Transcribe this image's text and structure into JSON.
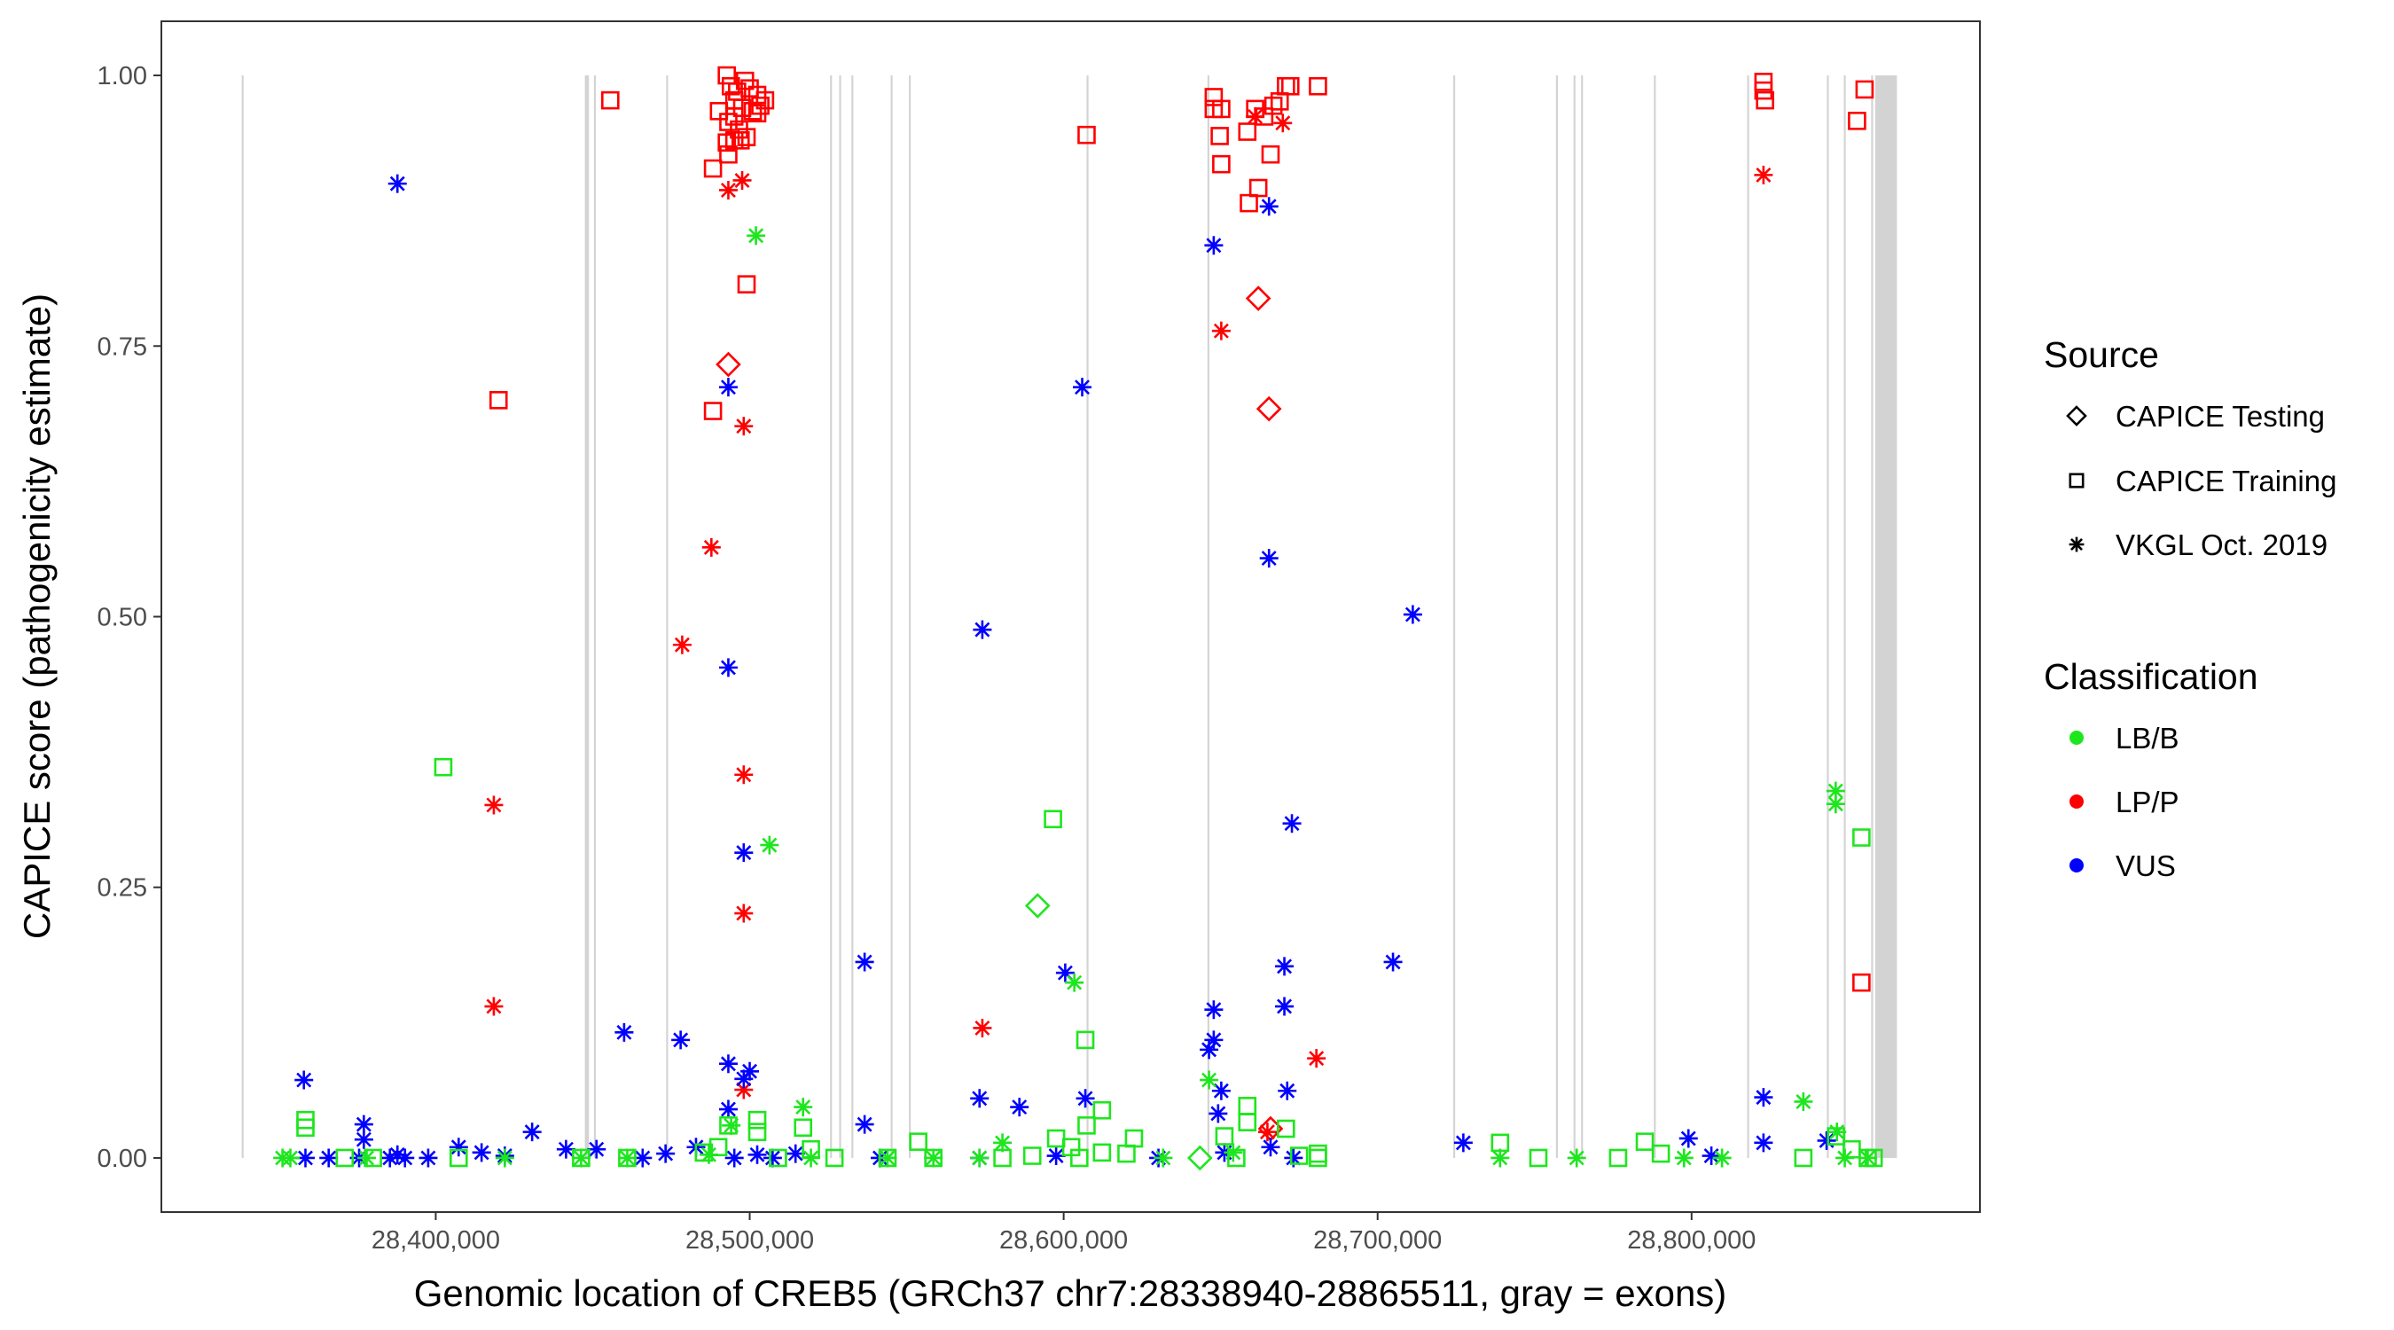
{
  "chart_data": {
    "type": "scatter",
    "title": "",
    "xlabel": "Genomic location of CREB5 (GRCh37 chr7:28338940-28865511, gray = exons)",
    "ylabel": "CAPICE score (pathogenicity estimate)",
    "xlim": [
      28312611,
      28891840
    ],
    "ylim": [
      -0.05,
      1.05
    ],
    "x_ticks": [
      28400000,
      28500000,
      28600000,
      28700000,
      28800000
    ],
    "x_tick_labels": [
      "28,400,000",
      "28,500,000",
      "28,600,000",
      "28,700,000",
      "28,800,000"
    ],
    "y_ticks": [
      0,
      0.25,
      0.5,
      0.75,
      1.0
    ],
    "y_tick_labels": [
      "0.00",
      "0.25",
      "0.50",
      "0.75",
      "1.00"
    ],
    "grid": false,
    "legend_placement": "right",
    "exons_color": "#c8c8c8",
    "exons": [
      [
        28338200,
        28338800
      ],
      [
        28447500,
        28448800
      ],
      [
        28450400,
        28451000
      ],
      [
        28473400,
        28474000
      ],
      [
        28525600,
        28526200
      ],
      [
        28528500,
        28529100
      ],
      [
        28532400,
        28533000
      ],
      [
        28544900,
        28545500
      ],
      [
        28550700,
        28551300
      ],
      [
        28607300,
        28607900
      ],
      [
        28645800,
        28646400
      ],
      [
        28724100,
        28724700
      ],
      [
        28756800,
        28757400
      ],
      [
        28762400,
        28763000
      ],
      [
        28764800,
        28765400
      ],
      [
        28788000,
        28788600
      ],
      [
        28817700,
        28818300
      ],
      [
        28843100,
        28843700
      ],
      [
        28848500,
        28849100
      ],
      [
        28857200,
        28857800
      ],
      [
        28858500,
        28865400
      ]
    ],
    "legend": {
      "source_title": "Source",
      "sources": [
        {
          "label": "CAPICE Testing",
          "shape": "diamond"
        },
        {
          "label": "CAPICE Training",
          "shape": "square"
        },
        {
          "label": "VKGL Oct. 2019",
          "shape": "asterisk"
        }
      ],
      "class_title": "Classification",
      "classes": [
        {
          "label": "LB/B",
          "color": "#1ee61e"
        },
        {
          "label": "LP/P",
          "color": "#ff0000"
        },
        {
          "label": "VUS",
          "color": "#0000ff"
        }
      ]
    },
    "point_fields": [
      "position",
      "score",
      "source_index",
      "class_index"
    ],
    "points": [
      [
        28455600,
        0.977,
        1,
        1
      ],
      [
        28420000,
        0.7,
        1,
        1
      ],
      [
        28492700,
        1.0,
        1,
        1
      ],
      [
        28494000,
        0.99,
        1,
        1
      ],
      [
        28496000,
        0.985,
        1,
        1
      ],
      [
        28498500,
        0.995,
        1,
        1
      ],
      [
        28500000,
        0.988,
        1,
        1
      ],
      [
        28502400,
        0.982,
        1,
        1
      ],
      [
        28495100,
        0.977,
        1,
        1
      ],
      [
        28497600,
        0.97,
        1,
        1
      ],
      [
        28501000,
        0.967,
        1,
        1
      ],
      [
        28503400,
        0.972,
        1,
        1
      ],
      [
        28490200,
        0.967,
        1,
        1
      ],
      [
        28493200,
        0.957,
        1,
        1
      ],
      [
        28496600,
        0.95,
        1,
        1
      ],
      [
        28499000,
        0.943,
        1,
        1
      ],
      [
        28495100,
        0.94,
        1,
        1
      ],
      [
        28492700,
        0.938,
        1,
        1
      ],
      [
        28488300,
        0.914,
        1,
        1
      ],
      [
        28493200,
        0.927,
        1,
        1
      ],
      [
        28497100,
        0.94,
        1,
        1
      ],
      [
        28499000,
        0.807,
        1,
        1
      ],
      [
        28488300,
        0.69,
        1,
        1
      ],
      [
        28495100,
        0.962,
        1,
        1
      ],
      [
        28502400,
        0.965,
        1,
        1
      ],
      [
        28504900,
        0.977,
        1,
        1
      ],
      [
        28607300,
        0.945,
        1,
        1
      ],
      [
        28647800,
        0.98,
        1,
        1
      ],
      [
        28647800,
        0.969,
        1,
        1
      ],
      [
        28650200,
        0.969,
        1,
        1
      ],
      [
        28649700,
        0.944,
        1,
        1
      ],
      [
        28650200,
        0.918,
        1,
        1
      ],
      [
        28658500,
        0.948,
        1,
        1
      ],
      [
        28661000,
        0.969,
        1,
        1
      ],
      [
        28663900,
        0.962,
        1,
        1
      ],
      [
        28666800,
        0.972,
        1,
        1
      ],
      [
        28668800,
        0.976,
        1,
        1
      ],
      [
        28670800,
        0.99,
        1,
        1
      ],
      [
        28672200,
        0.99,
        1,
        1
      ],
      [
        28681000,
        0.99,
        1,
        1
      ],
      [
        28662000,
        0.896,
        1,
        1
      ],
      [
        28659000,
        0.882,
        1,
        1
      ],
      [
        28665900,
        0.927,
        1,
        1
      ],
      [
        28822900,
        0.994,
        1,
        1
      ],
      [
        28822900,
        0.986,
        1,
        1
      ],
      [
        28823400,
        0.977,
        1,
        1
      ],
      [
        28855100,
        0.987,
        1,
        1
      ],
      [
        28852700,
        0.958,
        1,
        1
      ],
      [
        28854100,
        0.162,
        1,
        1
      ],
      [
        28493200,
        0.733,
        0,
        1
      ],
      [
        28662000,
        0.794,
        0,
        1
      ],
      [
        28665400,
        0.692,
        0,
        1
      ],
      [
        28665900,
        0.027,
        0,
        1
      ],
      [
        28493200,
        0.894,
        2,
        1
      ],
      [
        28497600,
        0.903,
        2,
        1
      ],
      [
        28498100,
        0.676,
        2,
        1
      ],
      [
        28487800,
        0.564,
        2,
        1
      ],
      [
        28478500,
        0.474,
        2,
        1
      ],
      [
        28498100,
        0.354,
        2,
        1
      ],
      [
        28498100,
        0.226,
        2,
        1
      ],
      [
        28418500,
        0.326,
        2,
        1
      ],
      [
        28418500,
        0.14,
        2,
        1
      ],
      [
        28498100,
        0.063,
        2,
        1
      ],
      [
        28574100,
        0.12,
        2,
        1
      ],
      [
        28650200,
        0.764,
        2,
        1
      ],
      [
        28661000,
        0.962,
        2,
        1
      ],
      [
        28669800,
        0.956,
        2,
        1
      ],
      [
        28680500,
        0.092,
        2,
        1
      ],
      [
        28822900,
        0.908,
        2,
        1
      ],
      [
        28664900,
        0.024,
        2,
        1
      ],
      [
        28387800,
        0.9,
        2,
        2
      ],
      [
        28493200,
        0.712,
        2,
        2
      ],
      [
        28493200,
        0.453,
        2,
        2
      ],
      [
        28498100,
        0.282,
        2,
        2
      ],
      [
        28574100,
        0.488,
        2,
        2
      ],
      [
        28536600,
        0.181,
        2,
        2
      ],
      [
        28605900,
        0.712,
        2,
        2
      ],
      [
        28647800,
        0.843,
        2,
        2
      ],
      [
        28665400,
        0.879,
        2,
        2
      ],
      [
        28665400,
        0.554,
        2,
        2
      ],
      [
        28711200,
        0.502,
        2,
        2
      ],
      [
        28672700,
        0.309,
        2,
        2
      ],
      [
        28670300,
        0.177,
        2,
        2
      ],
      [
        28670300,
        0.14,
        2,
        2
      ],
      [
        28704900,
        0.181,
        2,
        2
      ],
      [
        28600500,
        0.171,
        2,
        2
      ],
      [
        28647800,
        0.137,
        2,
        2
      ],
      [
        28647800,
        0.109,
        2,
        2
      ],
      [
        28646300,
        0.1,
        2,
        2
      ],
      [
        28650200,
        0.062,
        2,
        2
      ],
      [
        28649200,
        0.041,
        2,
        2
      ],
      [
        28671200,
        0.062,
        2,
        2
      ],
      [
        28358000,
        0.072,
        2,
        2
      ],
      [
        28460000,
        0.116,
        2,
        2
      ],
      [
        28478000,
        0.109,
        2,
        2
      ],
      [
        28493200,
        0.087,
        2,
        2
      ],
      [
        28500000,
        0.08,
        2,
        2
      ],
      [
        28498100,
        0.073,
        2,
        2
      ],
      [
        28493200,
        0.045,
        2,
        2
      ],
      [
        28536600,
        0.031,
        2,
        2
      ],
      [
        28573200,
        0.055,
        2,
        2
      ],
      [
        28585900,
        0.047,
        2,
        2
      ],
      [
        28606900,
        0.055,
        2,
        2
      ],
      [
        28430700,
        0.024,
        2,
        2
      ],
      [
        28377100,
        0.031,
        2,
        2
      ],
      [
        28377100,
        0.017,
        2,
        2
      ],
      [
        28727300,
        0.014,
        2,
        2
      ],
      [
        28799000,
        0.018,
        2,
        2
      ],
      [
        28822900,
        0.056,
        2,
        2
      ],
      [
        28822900,
        0.014,
        2,
        2
      ],
      [
        28843000,
        0.016,
        2,
        2
      ],
      [
        28358500,
        0,
        2,
        2
      ],
      [
        28365900,
        0,
        2,
        2
      ],
      [
        28375600,
        0,
        2,
        2
      ],
      [
        28385400,
        0,
        2,
        2
      ],
      [
        28387800,
        0.003,
        2,
        2
      ],
      [
        28390200,
        0,
        2,
        2
      ],
      [
        28397600,
        0,
        2,
        2
      ],
      [
        28407300,
        0.01,
        2,
        2
      ],
      [
        28414600,
        0.005,
        2,
        2
      ],
      [
        28422000,
        0.002,
        2,
        2
      ],
      [
        28441500,
        0.008,
        2,
        2
      ],
      [
        28451200,
        0.008,
        2,
        2
      ],
      [
        28465900,
        0,
        2,
        2
      ],
      [
        28473200,
        0.004,
        2,
        2
      ],
      [
        28482900,
        0.01,
        2,
        2
      ],
      [
        28495100,
        0,
        2,
        2
      ],
      [
        28502400,
        0.003,
        2,
        2
      ],
      [
        28507300,
        0,
        2,
        2
      ],
      [
        28514600,
        0.004,
        2,
        2
      ],
      [
        28541500,
        0,
        2,
        2
      ],
      [
        28573200,
        0,
        2,
        2
      ],
      [
        28597600,
        0.002,
        2,
        2
      ],
      [
        28630200,
        0,
        2,
        2
      ],
      [
        28651200,
        0.005,
        2,
        2
      ],
      [
        28665900,
        0.01,
        2,
        2
      ],
      [
        28673200,
        0,
        2,
        2
      ],
      [
        28806300,
        0.002,
        2,
        2
      ],
      [
        28402400,
        0.361,
        1,
        0
      ],
      [
        28358500,
        0.035,
        1,
        0
      ],
      [
        28358500,
        0.028,
        1,
        0
      ],
      [
        28596600,
        0.313,
        1,
        0
      ],
      [
        28606900,
        0.109,
        1,
        0
      ],
      [
        28502400,
        0.035,
        1,
        0
      ],
      [
        28502400,
        0.024,
        1,
        0
      ],
      [
        28517000,
        0.028,
        1,
        0
      ],
      [
        28493200,
        0.03,
        1,
        0
      ],
      [
        28553700,
        0.015,
        1,
        0
      ],
      [
        28854100,
        0.296,
        1,
        0
      ],
      [
        28846000,
        0.02,
        1,
        0
      ],
      [
        28835600,
        0,
        1,
        0
      ],
      [
        28785100,
        0.015,
        1,
        0
      ],
      [
        28739000,
        0.014,
        1,
        0
      ],
      [
        28751200,
        0,
        1,
        0
      ],
      [
        28776600,
        0,
        1,
        0
      ],
      [
        28790200,
        0.004,
        1,
        0
      ],
      [
        28681000,
        0,
        1,
        0
      ],
      [
        28622400,
        0.018,
        1,
        0
      ],
      [
        28612200,
        0.044,
        1,
        0
      ],
      [
        28607300,
        0.03,
        1,
        0
      ],
      [
        28658500,
        0.048,
        1,
        0
      ],
      [
        28658500,
        0.033,
        1,
        0
      ],
      [
        28670800,
        0.027,
        1,
        0
      ],
      [
        28651200,
        0.02,
        1,
        0
      ],
      [
        28602400,
        0.01,
        1,
        0
      ],
      [
        28597600,
        0.018,
        1,
        0
      ],
      [
        28612200,
        0.005,
        1,
        0
      ],
      [
        28371000,
        0,
        1,
        0
      ],
      [
        28380000,
        0,
        1,
        0
      ],
      [
        28407300,
        0,
        1,
        0
      ],
      [
        28446300,
        0,
        1,
        0
      ],
      [
        28461000,
        0,
        1,
        0
      ],
      [
        28485400,
        0.005,
        1,
        0
      ],
      [
        28490000,
        0.01,
        1,
        0
      ],
      [
        28509000,
        0,
        1,
        0
      ],
      [
        28519500,
        0.008,
        1,
        0
      ],
      [
        28527000,
        0,
        1,
        0
      ],
      [
        28543900,
        0,
        1,
        0
      ],
      [
        28558500,
        0,
        1,
        0
      ],
      [
        28580500,
        0,
        1,
        0
      ],
      [
        28590000,
        0.002,
        1,
        0
      ],
      [
        28605000,
        0,
        1,
        0
      ],
      [
        28620000,
        0.004,
        1,
        0
      ],
      [
        28655000,
        0,
        1,
        0
      ],
      [
        28675000,
        0.002,
        1,
        0
      ],
      [
        28681000,
        0.004,
        1,
        0
      ],
      [
        28851000,
        0.008,
        1,
        0
      ],
      [
        28856100,
        0,
        1,
        0
      ],
      [
        28858000,
        0,
        1,
        0
      ],
      [
        28502000,
        0.852,
        2,
        0
      ],
      [
        28506300,
        0.289,
        2,
        0
      ],
      [
        28603400,
        0.162,
        2,
        0
      ],
      [
        28845900,
        0.339,
        2,
        0
      ],
      [
        28845900,
        0.327,
        2,
        0
      ],
      [
        28835600,
        0.052,
        2,
        0
      ],
      [
        28846300,
        0.024,
        2,
        0
      ],
      [
        28517000,
        0.047,
        2,
        0
      ],
      [
        28646300,
        0.072,
        2,
        0
      ],
      [
        28494100,
        0.03,
        2,
        0
      ],
      [
        28580500,
        0.014,
        2,
        0
      ],
      [
        28351200,
        0,
        2,
        0
      ],
      [
        28353700,
        0,
        2,
        0
      ],
      [
        28378000,
        0,
        2,
        0
      ],
      [
        28422000,
        0,
        2,
        0
      ],
      [
        28446300,
        0,
        2,
        0
      ],
      [
        28461000,
        0,
        2,
        0
      ],
      [
        28487000,
        0.003,
        2,
        0
      ],
      [
        28519500,
        0,
        2,
        0
      ],
      [
        28543900,
        0,
        2,
        0
      ],
      [
        28558500,
        0,
        2,
        0
      ],
      [
        28573200,
        0,
        2,
        0
      ],
      [
        28631700,
        0,
        2,
        0
      ],
      [
        28654000,
        0.005,
        2,
        0
      ],
      [
        28739000,
        0,
        2,
        0
      ],
      [
        28763400,
        0,
        2,
        0
      ],
      [
        28797600,
        0,
        2,
        0
      ],
      [
        28809700,
        0,
        2,
        0
      ],
      [
        28848800,
        0,
        2,
        0
      ],
      [
        28856100,
        0,
        2,
        0
      ],
      [
        28591700,
        0.233,
        0,
        0
      ],
      [
        28643400,
        0,
        0,
        0
      ]
    ]
  }
}
